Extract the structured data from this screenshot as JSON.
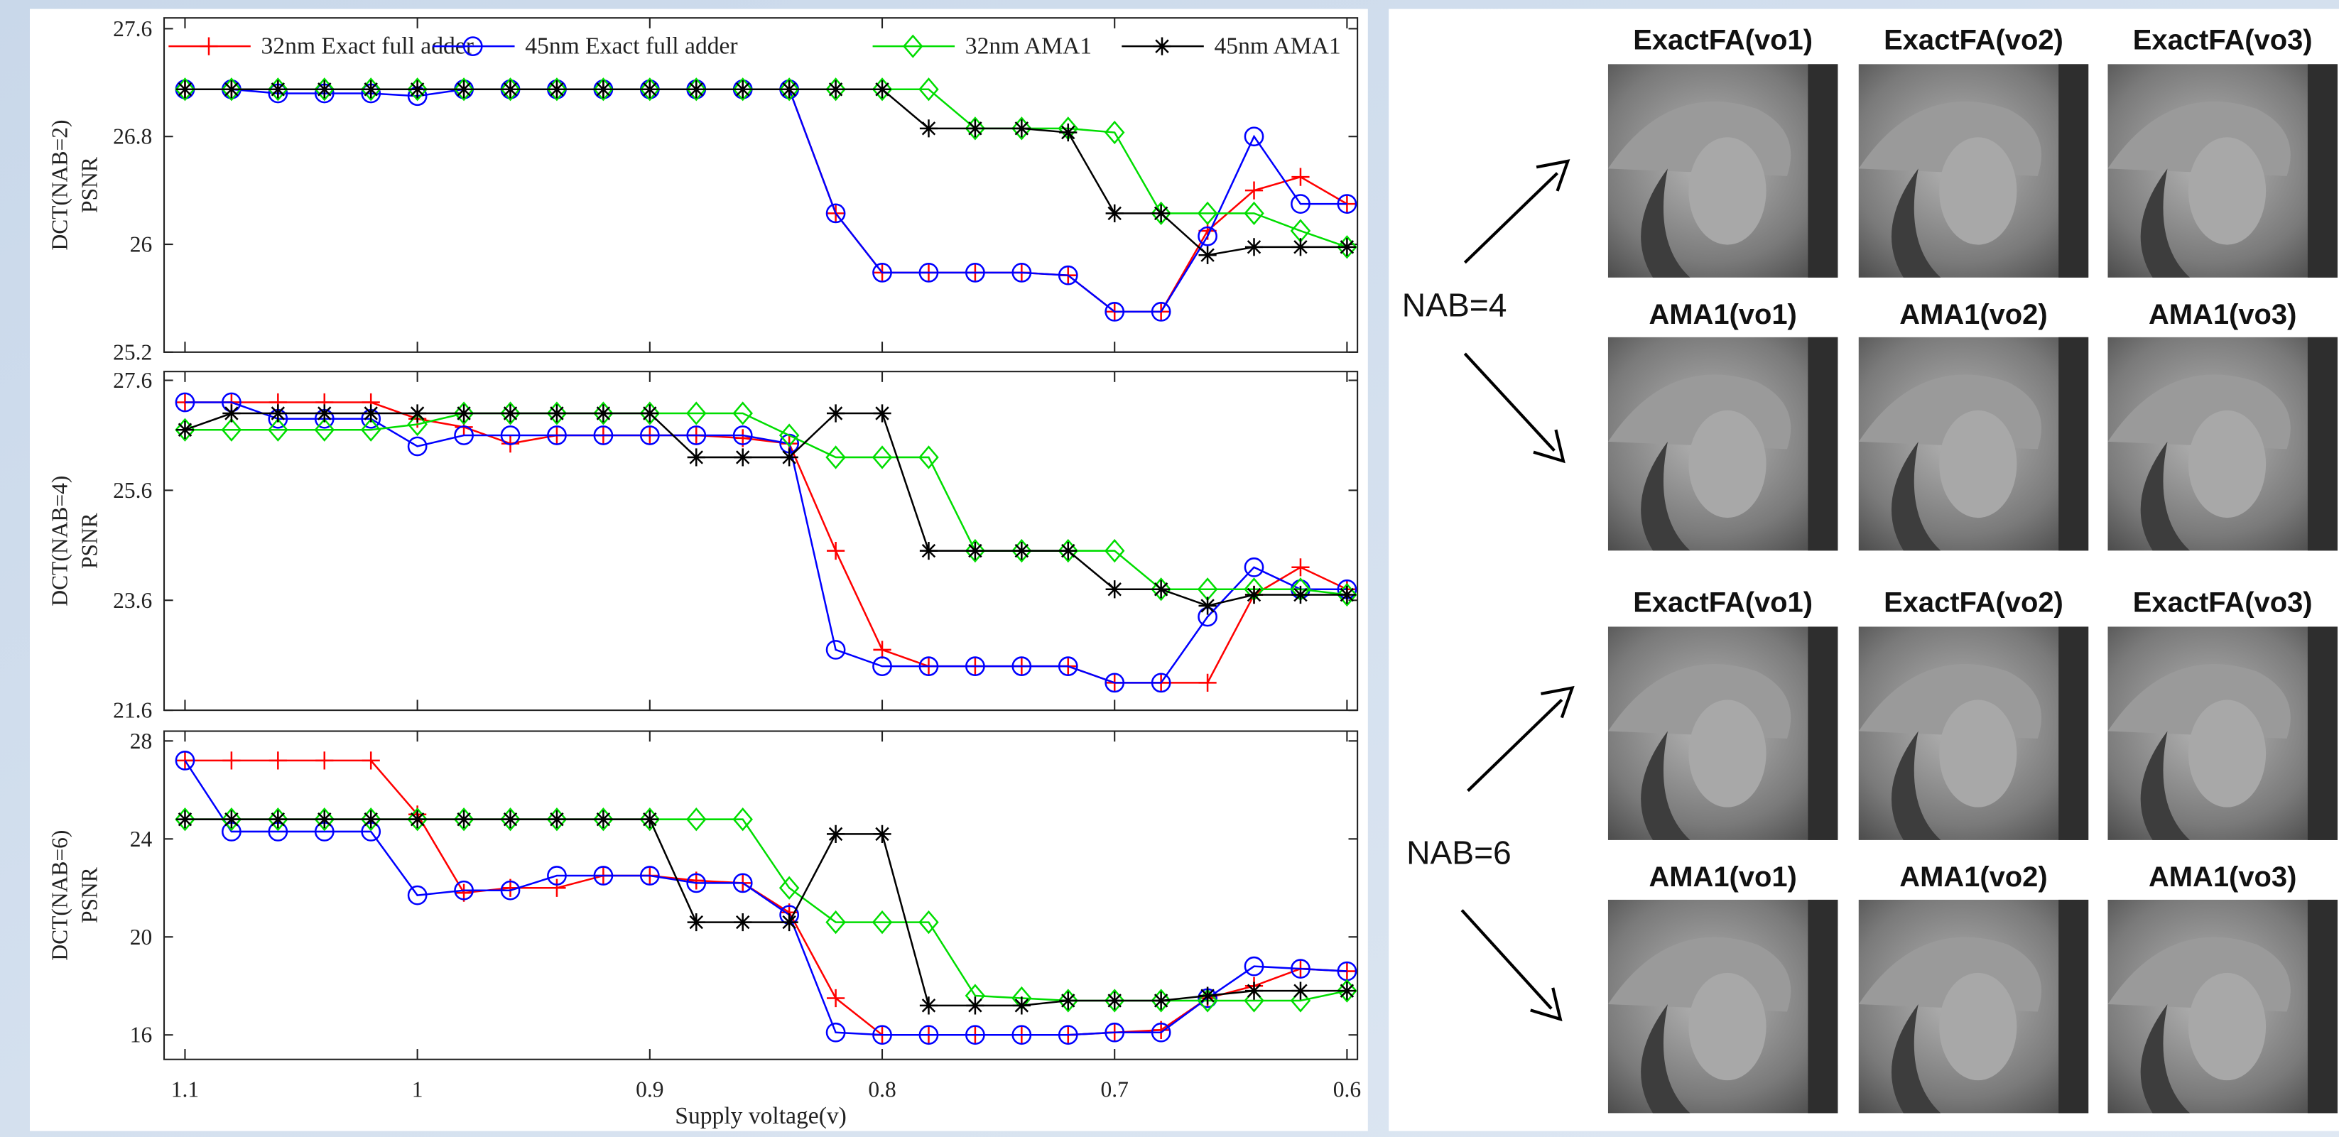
{
  "chart_data": [
    {
      "type": "line",
      "ylabel": [
        "DCT(NAB=2)",
        "PSNR"
      ],
      "ylim": [
        25.2,
        27.68
      ],
      "yticks": [
        25.2,
        26,
        26.8,
        27.6
      ],
      "legend": "top",
      "x": [
        1.1,
        1.08,
        1.06,
        1.04,
        1.02,
        1,
        0.98,
        0.96,
        0.94,
        0.92,
        0.9,
        0.88,
        0.86,
        0.84,
        0.82,
        0.8,
        0.78,
        0.76,
        0.74,
        0.72,
        0.7,
        0.68,
        0.66,
        0.64,
        0.62,
        0.6
      ],
      "series": [
        {
          "name": "32nm Exact full adder",
          "color": "#ff0000",
          "marker": "plus",
          "values": [
            27.15,
            27.15,
            27.15,
            27.15,
            27.15,
            27.15,
            27.15,
            27.15,
            27.15,
            27.15,
            27.15,
            27.15,
            27.15,
            27.15,
            26.23,
            25.79,
            25.79,
            25.79,
            25.79,
            25.77,
            25.5,
            25.5,
            26.1,
            26.4,
            26.5,
            26.3
          ]
        },
        {
          "name": "45nm Exact full adder",
          "color": "#0000ff",
          "marker": "circle",
          "values": [
            27.15,
            27.15,
            27.12,
            27.12,
            27.12,
            27.1,
            27.15,
            27.15,
            27.15,
            27.15,
            27.15,
            27.15,
            27.15,
            27.15,
            26.23,
            25.79,
            25.79,
            25.79,
            25.79,
            25.77,
            25.5,
            25.5,
            26.06,
            26.8,
            26.3,
            26.3
          ]
        },
        {
          "name": "32nm AMA1",
          "color": "#00dd00",
          "marker": "diamond",
          "values": [
            27.15,
            27.15,
            27.15,
            27.15,
            27.15,
            27.15,
            27.15,
            27.15,
            27.15,
            27.15,
            27.15,
            27.15,
            27.15,
            27.15,
            27.15,
            27.15,
            27.15,
            26.86,
            26.86,
            26.86,
            26.83,
            26.23,
            26.23,
            26.23,
            26.1,
            25.98
          ]
        },
        {
          "name": "45nm AMA1",
          "color": "#000000",
          "marker": "star",
          "values": [
            27.15,
            27.15,
            27.15,
            27.15,
            27.15,
            27.15,
            27.15,
            27.15,
            27.15,
            27.15,
            27.15,
            27.15,
            27.15,
            27.15,
            27.15,
            27.15,
            26.86,
            26.86,
            26.86,
            26.83,
            26.23,
            26.23,
            25.92,
            25.98,
            25.98,
            25.98
          ]
        }
      ]
    },
    {
      "type": "line",
      "ylabel": [
        "DCT(NAB=4)",
        "PSNR"
      ],
      "ylim": [
        21.6,
        27.76
      ],
      "yticks": [
        21.6,
        23.6,
        25.6,
        27.6
      ],
      "x": [
        1.1,
        1.08,
        1.06,
        1.04,
        1.02,
        1,
        0.98,
        0.96,
        0.94,
        0.92,
        0.9,
        0.88,
        0.86,
        0.84,
        0.82,
        0.8,
        0.78,
        0.76,
        0.74,
        0.72,
        0.7,
        0.68,
        0.66,
        0.64,
        0.62,
        0.6
      ],
      "series": [
        {
          "color": "#ff0000",
          "marker": "plus",
          "values": [
            27.2,
            27.2,
            27.2,
            27.2,
            27.2,
            26.9,
            26.75,
            26.45,
            26.6,
            26.6,
            26.6,
            26.6,
            26.55,
            26.45,
            24.5,
            22.7,
            22.4,
            22.4,
            22.4,
            22.4,
            22.1,
            22.1,
            22.1,
            23.7,
            24.2,
            23.8
          ]
        },
        {
          "color": "#0000ff",
          "marker": "circle",
          "values": [
            27.2,
            27.2,
            26.9,
            26.9,
            26.9,
            26.4,
            26.6,
            26.6,
            26.6,
            26.6,
            26.6,
            26.6,
            26.6,
            26.45,
            22.7,
            22.4,
            22.4,
            22.4,
            22.4,
            22.4,
            22.1,
            22.1,
            23.3,
            24.2,
            23.8,
            23.8
          ]
        },
        {
          "color": "#00dd00",
          "marker": "diamond",
          "values": [
            26.7,
            26.7,
            26.7,
            26.7,
            26.7,
            26.8,
            27.0,
            27.0,
            27.0,
            27.0,
            27.0,
            27.0,
            27.0,
            26.6,
            26.2,
            26.2,
            26.2,
            24.5,
            24.5,
            24.5,
            24.5,
            23.8,
            23.8,
            23.8,
            23.8,
            23.7
          ]
        },
        {
          "color": "#000000",
          "marker": "star",
          "values": [
            26.7,
            27.0,
            27.0,
            27.0,
            27.0,
            27.0,
            27.0,
            27.0,
            27.0,
            27.0,
            27.0,
            26.2,
            26.2,
            26.2,
            27.0,
            27.0,
            24.5,
            24.5,
            24.5,
            24.5,
            23.8,
            23.8,
            23.5,
            23.7,
            23.7,
            23.7
          ]
        }
      ]
    },
    {
      "type": "line",
      "ylabel": [
        "DCT(NAB=6)",
        "PSNR"
      ],
      "ylim": [
        15,
        28.4
      ],
      "yticks": [
        16,
        20,
        24,
        28
      ],
      "xlabel": "Supply voltage(v)",
      "xlim": [
        1.109,
        0.5955
      ],
      "xticks": [
        1.1,
        1,
        0.9,
        0.8,
        0.7,
        0.6
      ],
      "x": [
        1.1,
        1.08,
        1.06,
        1.04,
        1.02,
        1,
        0.98,
        0.96,
        0.94,
        0.92,
        0.9,
        0.88,
        0.86,
        0.84,
        0.82,
        0.8,
        0.78,
        0.76,
        0.74,
        0.72,
        0.7,
        0.68,
        0.66,
        0.64,
        0.62,
        0.6
      ],
      "series": [
        {
          "color": "#ff0000",
          "marker": "plus",
          "values": [
            27.2,
            27.2,
            27.2,
            27.2,
            27.2,
            25.0,
            21.8,
            22.0,
            22.0,
            22.5,
            22.5,
            22.3,
            22.2,
            21.0,
            17.5,
            16.0,
            16.0,
            16.0,
            16.0,
            16.0,
            16.1,
            16.2,
            17.5,
            18.0,
            18.7,
            18.6
          ]
        },
        {
          "color": "#0000ff",
          "marker": "circle",
          "values": [
            27.2,
            24.3,
            24.3,
            24.3,
            24.3,
            21.7,
            21.9,
            21.9,
            22.5,
            22.5,
            22.5,
            22.2,
            22.2,
            20.9,
            16.1,
            16.0,
            16.0,
            16.0,
            16.0,
            16.0,
            16.1,
            16.1,
            17.5,
            18.8,
            18.7,
            18.6
          ]
        },
        {
          "color": "#00dd00",
          "marker": "diamond",
          "values": [
            24.8,
            24.8,
            24.8,
            24.8,
            24.8,
            24.8,
            24.8,
            24.8,
            24.8,
            24.8,
            24.8,
            24.8,
            24.8,
            22.0,
            20.6,
            20.6,
            20.6,
            17.6,
            17.5,
            17.4,
            17.4,
            17.4,
            17.4,
            17.4,
            17.4,
            17.8
          ]
        },
        {
          "color": "#000000",
          "marker": "star",
          "values": [
            24.8,
            24.8,
            24.8,
            24.8,
            24.8,
            24.8,
            24.8,
            24.8,
            24.8,
            24.8,
            24.8,
            20.6,
            20.6,
            20.6,
            24.2,
            24.2,
            17.2,
            17.2,
            17.2,
            17.4,
            17.4,
            17.4,
            17.6,
            17.8,
            17.8,
            17.8
          ]
        }
      ]
    }
  ],
  "images": {
    "nab_labels": [
      "NAB=4",
      "NAB=6"
    ],
    "rows": [
      [
        "ExactFA(vo1)",
        "ExactFA(vo2)",
        "ExactFA(vo3)"
      ],
      [
        "AMA1(vo1)",
        "AMA1(vo2)",
        "AMA1(vo3)"
      ],
      [
        "ExactFA(vo1)",
        "ExactFA(vo2)",
        "ExactFA(vo3)"
      ],
      [
        "AMA1(vo1)",
        "AMA1(vo2)",
        "AMA1(vo3)"
      ]
    ]
  }
}
